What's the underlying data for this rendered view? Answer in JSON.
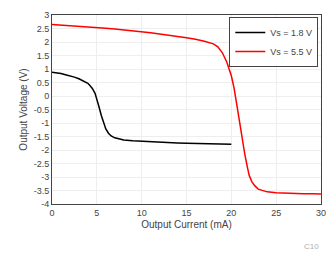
{
  "chart_data": {
    "type": "line",
    "xlabel": "Output Current (mA)",
    "ylabel": "Output Voltage (V)",
    "xlim": [
      0,
      30
    ],
    "ylim": [
      -4,
      3
    ],
    "xticks": [
      0,
      5,
      10,
      15,
      20,
      25,
      30
    ],
    "yticks": [
      -4,
      -3.5,
      -3,
      -2.5,
      -2,
      -1.5,
      -1,
      -0.5,
      0,
      0.5,
      1,
      1.5,
      2,
      2.5,
      3
    ],
    "grid": true,
    "legend": "upper right",
    "annotations": [
      "C10"
    ],
    "series": [
      {
        "name": "Vs = 1.8 V",
        "color": "#000000",
        "x": [
          0,
          0.5,
          1,
          1.5,
          2,
          2.5,
          3,
          3.5,
          4,
          4.2,
          4.5,
          4.8,
          5.0,
          5.2,
          5.5,
          5.8,
          6.0,
          6.3,
          6.6,
          7.0,
          7.5,
          8.0,
          9.0,
          10.0,
          11.0,
          12.0,
          13.0,
          14.0,
          15.0,
          16.0,
          17.0,
          18.0,
          19.0,
          20.0
        ],
        "values": [
          0.88,
          0.86,
          0.83,
          0.79,
          0.75,
          0.7,
          0.64,
          0.56,
          0.47,
          0.4,
          0.28,
          0.1,
          -0.1,
          -0.35,
          -0.72,
          -1.05,
          -1.22,
          -1.38,
          -1.48,
          -1.55,
          -1.6,
          -1.63,
          -1.66,
          -1.68,
          -1.7,
          -1.72,
          -1.73,
          -1.74,
          -1.75,
          -1.76,
          -1.77,
          -1.77,
          -1.78,
          -1.79
        ]
      },
      {
        "name": "Vs = 5.5 V",
        "color": "#ff0000",
        "x": [
          0,
          1,
          2,
          3,
          4,
          5,
          6,
          7,
          8,
          9,
          10,
          11,
          12,
          13,
          14,
          15,
          16,
          17,
          18,
          18.5,
          19.0,
          19.5,
          20.0,
          20.3,
          20.6,
          20.9,
          21.2,
          21.5,
          21.8,
          22.0,
          22.3,
          22.6,
          23.0,
          24.0,
          25.0,
          26.0,
          27.0,
          28.0,
          29.0,
          30.0
        ],
        "values": [
          2.65,
          2.63,
          2.61,
          2.59,
          2.56,
          2.54,
          2.51,
          2.48,
          2.45,
          2.42,
          2.38,
          2.34,
          2.3,
          2.26,
          2.21,
          2.16,
          2.1,
          2.03,
          1.93,
          1.82,
          1.6,
          1.25,
          0.75,
          0.3,
          -0.3,
          -0.95,
          -1.6,
          -2.15,
          -2.65,
          -2.95,
          -3.18,
          -3.32,
          -3.45,
          -3.55,
          -3.58,
          -3.6,
          -3.61,
          -3.62,
          -3.62,
          -3.63
        ]
      }
    ]
  }
}
